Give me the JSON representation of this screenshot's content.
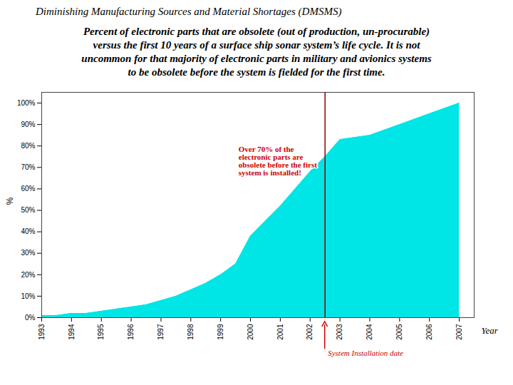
{
  "chart_data": {
    "type": "area",
    "title": "Diminishing Manufacturing Sources and Material Shortages (DMSMS)",
    "subtitle": [
      "Percent of electronic parts that are obsolete (out of production, un-procurable)",
      "versus the first 10 years of a surface ship sonar system’s life cycle.  It is not",
      "uncommon for that majority of electronic parts in military and avionics systems",
      "to be obsolete before the system is fielded for the first time."
    ],
    "x": [
      1993,
      1993.5,
      1994,
      1994.5,
      1995,
      1995.5,
      1996,
      1996.5,
      1997,
      1997.5,
      1998,
      1998.5,
      1999,
      1999.5,
      2000,
      2000.5,
      2001,
      2001.5,
      2002,
      2002.5,
      2003,
      2004,
      2005,
      2006,
      2007
    ],
    "values": [
      1,
      1,
      2,
      2,
      3,
      4,
      5,
      6,
      8,
      10,
      13,
      16,
      20,
      25,
      38,
      45,
      52,
      60,
      68,
      75,
      83,
      85,
      90,
      95,
      100
    ],
    "color": "#00E5E5",
    "xlabel": "Year",
    "ylabel": "%",
    "xlim": [
      1993,
      2007.5
    ],
    "xticks": [
      1993,
      1994,
      1995,
      1996,
      1997,
      1998,
      1999,
      2000,
      2001,
      2002,
      2003,
      2004,
      2005,
      2006,
      2007
    ],
    "ylim": [
      0,
      105
    ],
    "yticks": [
      {
        "value": 0,
        "label": "0%"
      },
      {
        "value": 10,
        "label": "10%"
      },
      {
        "value": 20,
        "label": "20%"
      },
      {
        "value": 30,
        "label": "30%"
      },
      {
        "value": 40,
        "label": "40%"
      },
      {
        "value": 50,
        "label": "50%"
      },
      {
        "value": 60,
        "label": "60%"
      },
      {
        "value": 70,
        "label": "70%"
      },
      {
        "value": 80,
        "label": "80%"
      },
      {
        "value": 90,
        "label": "90%"
      },
      {
        "value": 100,
        "label": "100%"
      }
    ],
    "vline": {
      "x": 2002.5,
      "color": "#8B0000",
      "label": "System Installation date",
      "label_color": "#CC0000"
    },
    "annotations": [
      {
        "text": "Over 70% of the\nelectronic parts are\nobsolete before the first\nsystem is installed!",
        "x": 1999.6,
        "y": 80,
        "color": "#CC0000"
      }
    ]
  }
}
